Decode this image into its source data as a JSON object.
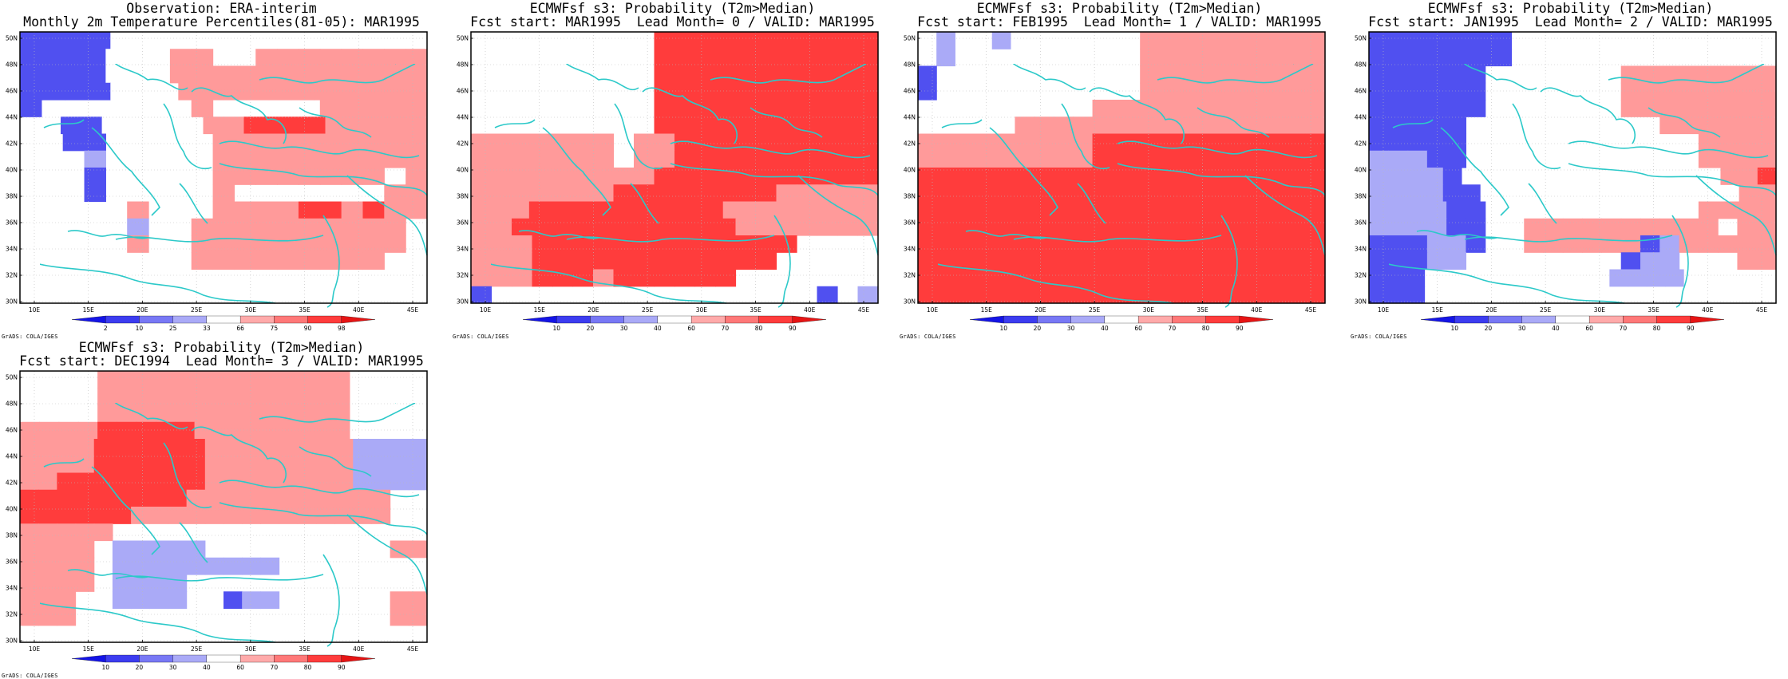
{
  "credit": "GrADS: COLA/IGES",
  "x_ticks": [
    "10E",
    "15E",
    "20E",
    "25E",
    "30E",
    "35E",
    "40E",
    "45E"
  ],
  "y_ticks": [
    "30N",
    "32N",
    "34N",
    "36N",
    "38N",
    "40N",
    "42N",
    "44N",
    "46N",
    "48N",
    "50N"
  ],
  "colorbar_obs": {
    "labels": [
      "2",
      "10",
      "25",
      "33",
      "66",
      "75",
      "90",
      "98"
    ],
    "colors": [
      "#1414e6",
      "#3c3cf0",
      "#7878f5",
      "#aaaaf7",
      "#ffffff",
      "#ffaaaa",
      "#ff7878",
      "#ff3c3c",
      "#e61414"
    ]
  },
  "colorbar_prob": {
    "labels": [
      "10",
      "20",
      "30",
      "40",
      "60",
      "70",
      "80",
      "90"
    ],
    "colors": [
      "#1414e6",
      "#3c3cf0",
      "#7878f5",
      "#aaaaf7",
      "#ffffff",
      "#ffaaaa",
      "#ff7878",
      "#ff3c3c",
      "#e61414"
    ]
  },
  "panels": [
    {
      "title_line1": "Observation: ERA-interim",
      "title_line2": "Monthly 2m Temperature Percentiles(81-05): MAR1995",
      "scale": "obs",
      "grid": [
        "bbbbiiw.ww.ww.w.ww",
        "bbbbiiwoow.oooooooo",
        "bbbbiiwoooooooooooo",
        "bbbbiwwooooooooooo",
        "bwwwwwwwowwwwwooooo",
        "wwbbwwwwwoorrrrooooo",
        "wwbbwwwwwoooooooooo",
        "wwwlwwwwwoooooooooo",
        "wwwbwwwwwoooooooowo",
        "wwwbwwwwwowwwwwwwoo",
        "wwwwwowwwoooorroroo",
        "wwwwwlwwoooooooooow",
        "wwwwwowwoooooooooow",
        "wwwwwwwwoooooooooww",
        "wwwwwwwwwwwwwwwwwww",
        "wwwwwwwwwwwwwwwwwww"
      ]
    },
    {
      "title_line1": "ECMWFsf s3: Probability (T2m>Median)",
      "title_line2": "Fcst start: MAR1995  Lead Month= 0 / VALID: MAR1995",
      "scale": "prob",
      "grid": [
        "wwwwwwwwwrrrrrrrrrrr",
        "wwwwwwwwwrrrrrrrrrrr",
        "wwwwwwwwwrrrrrrrrrrr",
        "wwwwwwwwwrrrrrrrrrrr",
        "wwwwwwwwwrrrrrrrrrrr",
        "wwwwwwwwwrrrrrrrrrrr",
        "ooooooowoorrrrrrrrrr",
        "ooooooowoorrrrrrrrrr",
        "ooooooooorrrrrrrrrrr",
        "ooooooorrrrrrrrooooo",
        "ooorrrrrrrrrroooooooo",
        "oorrrrrrrrrrrooooooo",
        "ooorrrrrrrrrrrrrwwww",
        "ooorrrrrrrrrrrrwwwww",
        "ooorrrorrrrrrwwwwwww",
        "bwwwwwwwwwwwwwwwwbwl"
      ]
    },
    {
      "title_line1": "ECMWFsf s3: Probability (T2m>Median)",
      "title_line2": "Fcst start: FEB1995  Lead Month= 1 / VALID: MAR1995",
      "scale": "prob",
      "grid": [
        "wlwwlwwwwwwwoooooooooo",
        "wlwwwwwwwwwwoooooooooo",
        "bwwwwwwwwwwwoooooooooo",
        "bwwwwwwwwwwwoooooooooo",
        "wwwwwwwwwoooooooooooo",
        "wwwwwoooooooooooooooo",
        "ooooooooorrrrrrrrrrrr",
        "ooooooooorrrrrrrrrrrr",
        "rrrrrrrrrrrrrrrrrrrr",
        "rrrrrrrrrrrrrrrrrrrr",
        "rrrrrrrrrrrrrrrrrrrr",
        "rrrrrrrrrrrrrrrrrrrr",
        "rrrrrrrrrrrrrrrrrrrr",
        "rrrrrrrrrrrrrrrrrrrr",
        "rrrrrrrrrrrrrrrrrrrr",
        "rrrrrrrrrrrrrrrrrrrr"
      ]
    },
    {
      "title_line1": "ECMWFsf s3: Probability (T2m>Median)",
      "title_line2": "Fcst start: JAN1995  Lead Month= 2 / VALID: MAR1995",
      "scale": "prob",
      "grid": [
        "bbbbbbbwwwwwwwwwwwww",
        "bbbbbbbwwwwwwwwwwwww",
        "bbbbbbwwwwwwwoooooooo",
        "bbbbbbwwwwwwwoooooooo",
        "bbbbbbwwwwwwwoooooooo",
        "bbbbbwwwwwwwwwwoooooo",
        "bbbbbwwwwwwwwwwwwoooo",
        "lllbbwwwwwwwwwwwwoooo",
        "llllbwwwwwwwwwwwwwwoor",
        "llllbbwwwwwwwwwwwwwwoo",
        "llllbbwwwwwwwwwwwoooo",
        "llllbbwwoooooooooowoo",
        "bbbllbwwooooooblooooo",
        "bbbllwwwwwwwwbllwwwoo",
        "bbbwwwwwwwwwwllllwwwww",
        "bbbwwwwwwwwwwwwwwwwwww"
      ]
    },
    {
      "title_line1": "ECMWFsf s3: Probability (T2m>Median)",
      "title_line2": "Fcst start: DEC1994  Lead Month= 3 / VALID: MAR1995",
      "scale": "prob",
      "grid": [
        "wwwwooooooooooooowwww",
        "wwwwooooooooooooowwww",
        "wwwwooooooooooooowwww",
        "oooorrrrroooooooowwww",
        "oooorrrrrroooooooollll",
        "oooorrrrrroooooooollll",
        "oorrrrrrrroooooooollll",
        "rrrrrrrrroooooooooooww",
        "rrrrrrooooooooooooooww",
        "ooooowwwwwwwwwwwwwwwww",
        "oooowlllllwwwwwwwwwwoo",
        "oooowlllllllllwwwwwwww",
        "oooowllllwwwwwwwwwwwww",
        "ooowwllllwwbllwwwwwwoo",
        "ooowwwwwwwwwwwwwwwwwoo",
        "wwwwwwwwwwwwwwwwwwwwww"
      ]
    }
  ]
}
